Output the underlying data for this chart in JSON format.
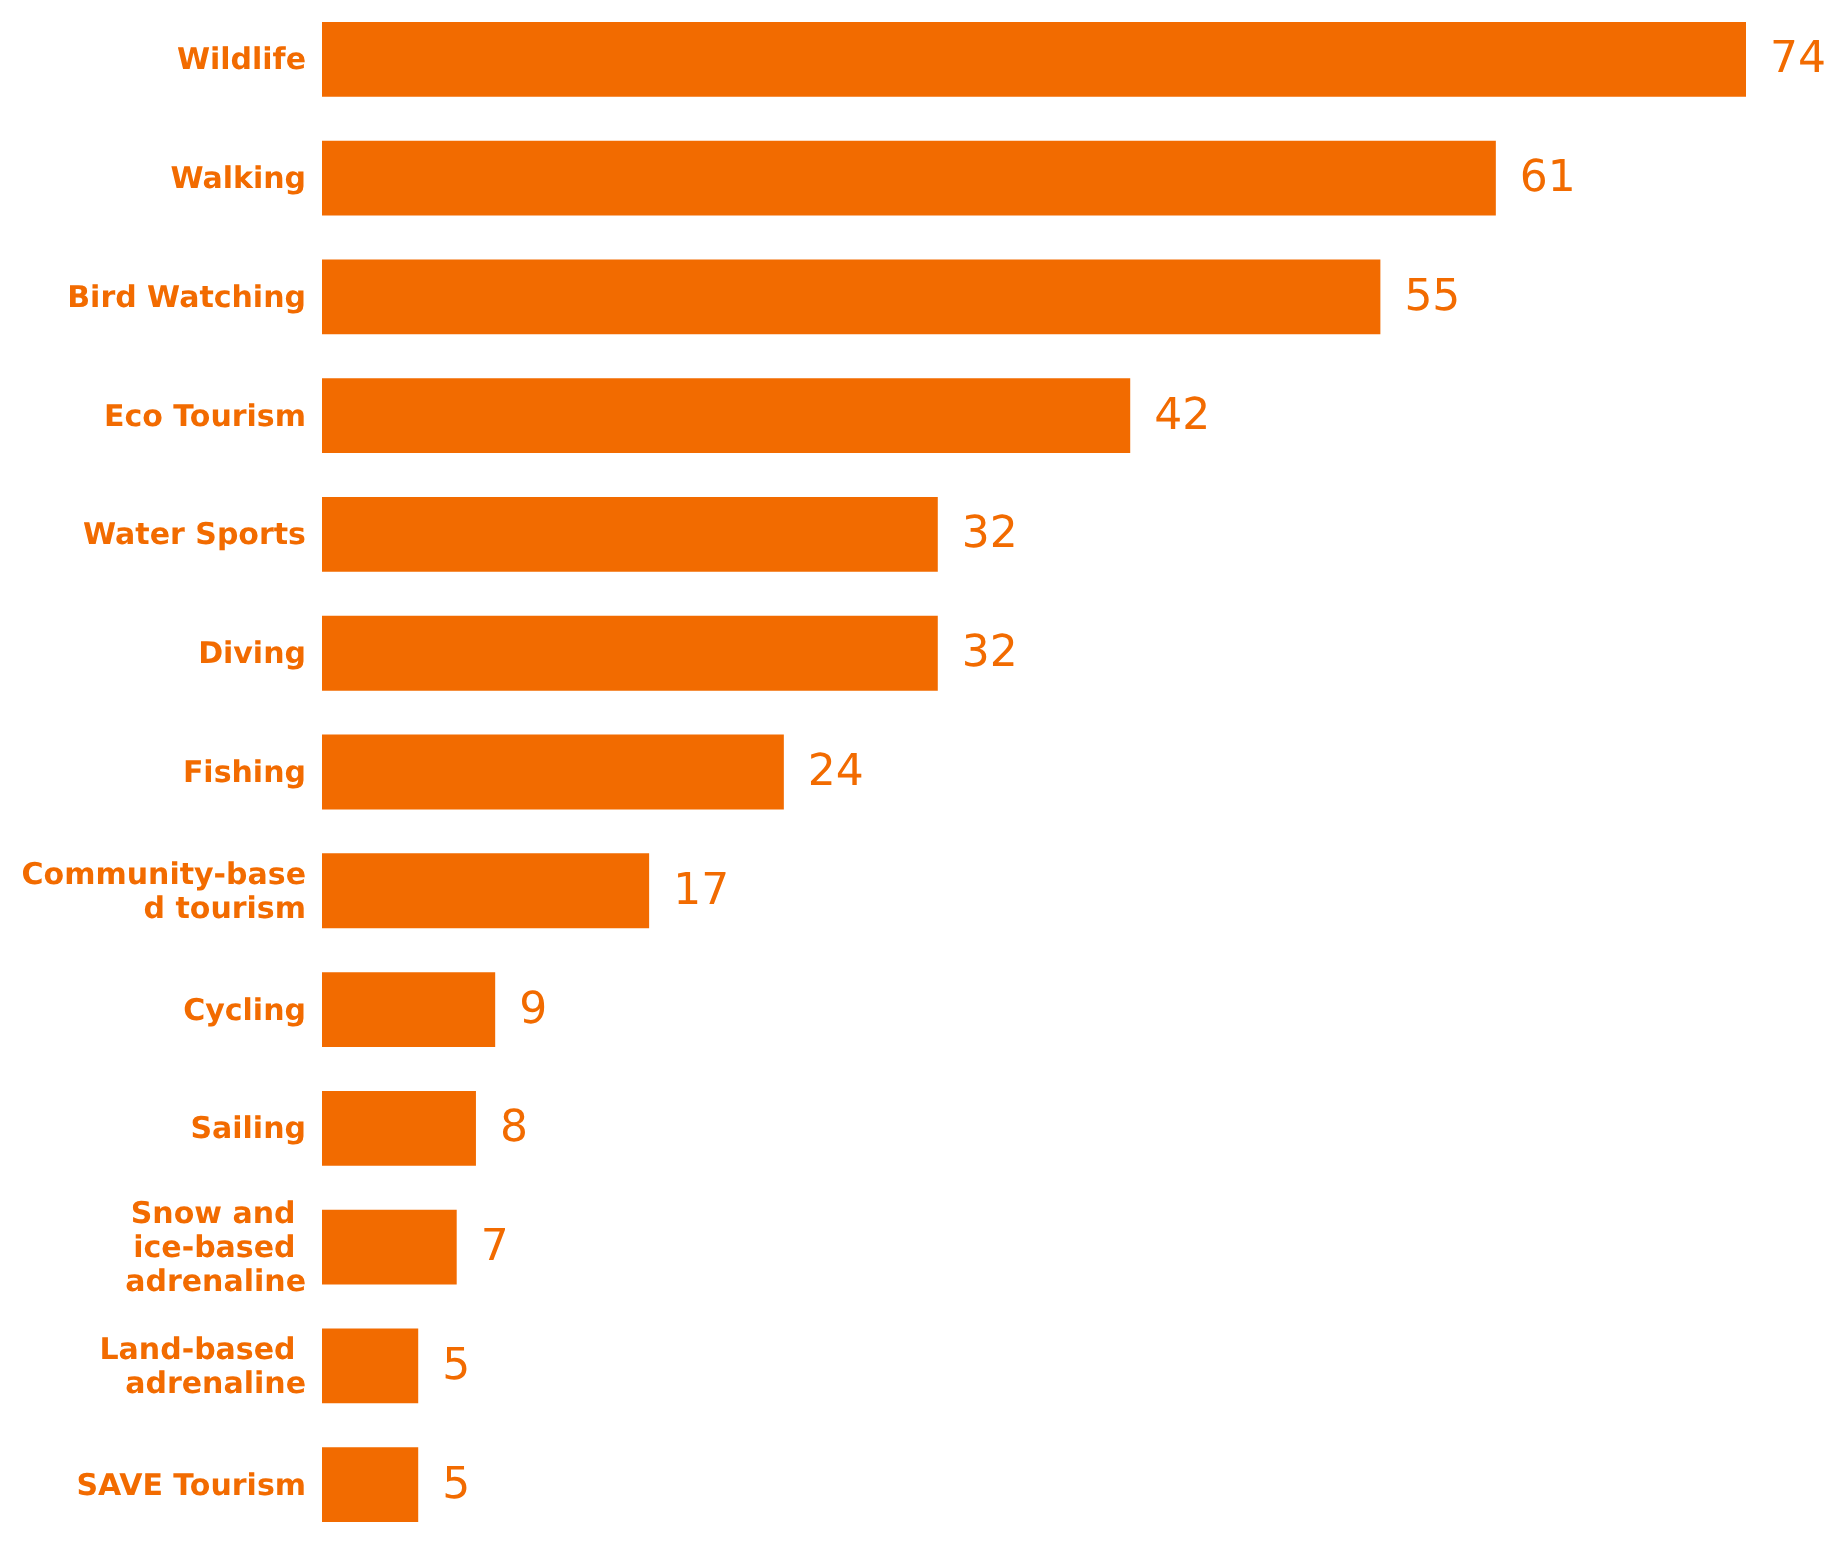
{
  "chart_data": {
    "type": "bar",
    "orientation": "horizontal",
    "categories": [
      "Wildlife",
      "Walking",
      "Bird Watching",
      "Eco Tourism",
      "Water Sports",
      "Diving",
      "Fishing",
      "Community-based tourism",
      "Cycling",
      "Sailing",
      "Snow and ice-based adrenaline",
      "Land-based adrenaline",
      "SAVE Tourism"
    ],
    "values": [
      74,
      61,
      55,
      42,
      32,
      32,
      24,
      17,
      9,
      8,
      7,
      5,
      5
    ],
    "color": "#f26b00",
    "data_labels": true
  }
}
